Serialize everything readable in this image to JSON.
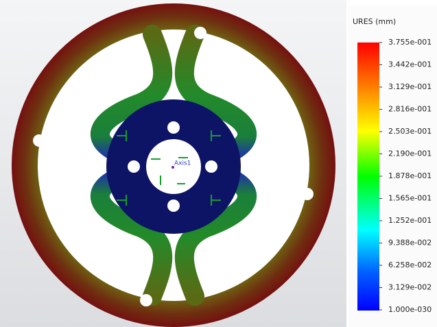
{
  "legend": {
    "title": "URES (mm)",
    "labels": [
      "3.755e-001",
      "3.442e-001",
      "3.129e-001",
      "2.816e-001",
      "2.503e-001",
      "2.190e-001",
      "1.878e-001",
      "1.565e-001",
      "1.252e-001",
      "9.388e-002",
      "6.258e-002",
      "3.129e-002",
      "1.000e-030"
    ]
  },
  "model": {
    "axis_label": "Axis1"
  }
}
